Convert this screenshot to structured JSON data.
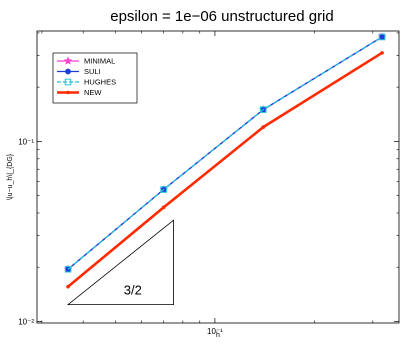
{
  "chart_data": {
    "type": "line",
    "title": "epsilon = 1e−06   unstructured  grid",
    "xlabel": "h",
    "ylabel": "\\|u−u_h\\|_{DG}",
    "xscale": "log",
    "yscale": "log",
    "xlim": [
      0.029,
      0.36
    ],
    "ylim": [
      0.0098,
      0.41
    ],
    "xticks": [
      {
        "value": 0.1,
        "label": "10⁻¹"
      }
    ],
    "yticks": [
      {
        "value": 0.01,
        "label": "10⁻²"
      },
      {
        "value": 0.1,
        "label": "10⁻¹"
      }
    ],
    "legend_position": "top-left",
    "grid": false,
    "series": [
      {
        "name": "MINIMAL",
        "color": "#ff3fd0",
        "marker": "star",
        "dash": "solid",
        "x": [
          0.036,
          0.07,
          0.14,
          0.32
        ],
        "y": [
          0.0195,
          0.054,
          0.15,
          0.38
        ]
      },
      {
        "name": "SULI",
        "color": "#1a3fd9",
        "marker": "circle",
        "dash": "solid",
        "x": [
          0.036,
          0.07,
          0.14,
          0.32
        ],
        "y": [
          0.0195,
          0.054,
          0.15,
          0.38
        ]
      },
      {
        "name": "HUGHES",
        "color": "#22c4d8",
        "marker": "square",
        "dash": "dashed",
        "x": [
          0.036,
          0.07,
          0.14,
          0.32
        ],
        "y": [
          0.0195,
          0.054,
          0.15,
          0.38
        ]
      },
      {
        "name": "NEW",
        "color": "#ff2a00",
        "marker": "dot",
        "dash": "solid",
        "x": [
          0.036,
          0.07,
          0.14,
          0.32
        ],
        "y": [
          0.0156,
          0.043,
          0.12,
          0.31
        ]
      }
    ],
    "annotations": [
      {
        "type": "slope-triangle",
        "label": "3/2",
        "x": [
          0.036,
          0.075
        ],
        "y": [
          0.0124,
          0.0365
        ]
      }
    ]
  }
}
